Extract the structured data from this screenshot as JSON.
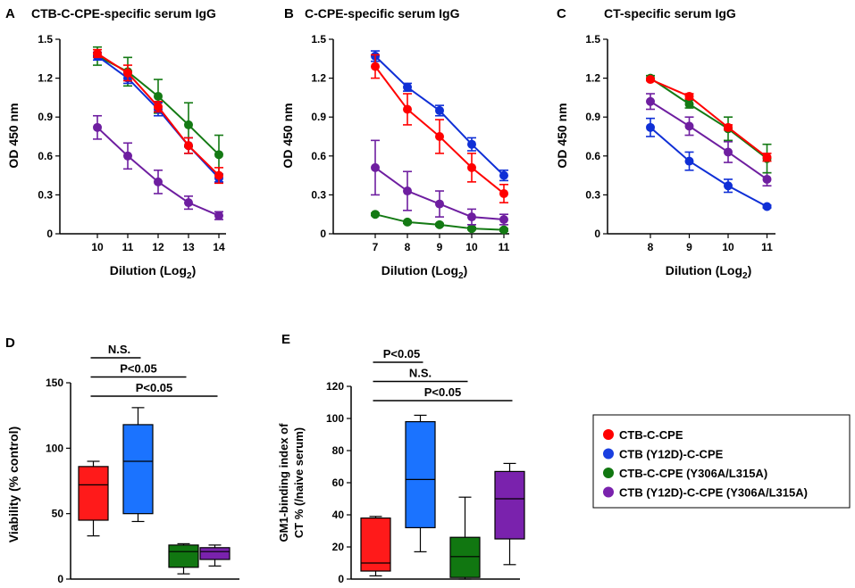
{
  "colors": {
    "red": "#ff0000",
    "blue": "#0f2fd6",
    "green": "#147a14",
    "purple": "#6e1ea0",
    "box_red": "#ff1a1a",
    "box_blue": "#1b73ff",
    "box_green": "#117711",
    "box_purple": "#7a22ad"
  },
  "legend": {
    "items": [
      {
        "label": "CTB-C-CPE",
        "color": "#ff0000"
      },
      {
        "label": "CTB (Y12D)-C-CPE",
        "color": "#1a3fe0"
      },
      {
        "label": "CTB-C-CPE (Y306A/L315A)",
        "color": "#117711"
      },
      {
        "label": "CTB (Y12D)-C-CPE (Y306A/L315A)",
        "color": "#7a22ad"
      }
    ]
  },
  "chart_data": [
    {
      "panel": "A",
      "type": "line",
      "title": "CTB-C-CPE-specific serum IgG",
      "xlabel": "Dilution (Log",
      "xlabel_sub": "2",
      "xlabel_end": ")",
      "ylabel": "OD 450 nm",
      "x": [
        10,
        11,
        12,
        13,
        14
      ],
      "x_ticks": [
        "10",
        "11",
        "12",
        "13",
        "14"
      ],
      "ylim": [
        0,
        1.5
      ],
      "y_ticks": [
        "0",
        "0.3",
        "0.6",
        "0.9",
        "1.2",
        "1.5"
      ],
      "series": [
        {
          "name": "CTB (Y12D)-C-CPE (Y306A/L315A)",
          "color": "#6e1ea0",
          "values": [
            0.82,
            0.6,
            0.4,
            0.24,
            0.14
          ],
          "errors": [
            0.09,
            0.1,
            0.09,
            0.05,
            0.03
          ]
        },
        {
          "name": "CTB-C-CPE (Y306A/L315A)",
          "color": "#147a14",
          "values": [
            1.37,
            1.25,
            1.06,
            0.84,
            0.61
          ],
          "errors": [
            0.07,
            0.11,
            0.13,
            0.17,
            0.15
          ]
        },
        {
          "name": "CTB (Y12D)-C-CPE",
          "color": "#0f2fd6",
          "values": [
            1.37,
            1.2,
            0.96,
            0.68,
            0.43
          ],
          "errors": [
            0.03,
            0.04,
            0.05,
            0.06,
            0.03
          ]
        },
        {
          "name": "CTB-C-CPE",
          "color": "#ff0000",
          "values": [
            1.39,
            1.24,
            0.98,
            0.68,
            0.45
          ],
          "errors": [
            0.03,
            0.06,
            0.04,
            0.06,
            0.06
          ]
        }
      ]
    },
    {
      "panel": "B",
      "type": "line",
      "title": "C-CPE-specific serum IgG",
      "xlabel": "Dilution (Log",
      "xlabel_sub": "2",
      "xlabel_end": ")",
      "ylabel": "OD 450 nm",
      "x": [
        7,
        8,
        9,
        10,
        11
      ],
      "x_ticks": [
        "7",
        "8",
        "9",
        "10",
        "11"
      ],
      "ylim": [
        0,
        1.5
      ],
      "y_ticks": [
        "0",
        "0.3",
        "0.6",
        "0.9",
        "1.2",
        "1.5"
      ],
      "series": [
        {
          "name": "CTB-C-CPE (Y306A/L315A)",
          "color": "#147a14",
          "values": [
            0.15,
            0.09,
            0.07,
            0.04,
            0.03
          ],
          "errors": [
            0.01,
            0.01,
            0.01,
            0.01,
            0.01
          ]
        },
        {
          "name": "CTB (Y12D)-C-CPE (Y306A/L315A)",
          "color": "#6e1ea0",
          "values": [
            0.51,
            0.33,
            0.23,
            0.13,
            0.11
          ],
          "errors": [
            0.21,
            0.15,
            0.1,
            0.06,
            0.04
          ]
        },
        {
          "name": "CTB (Y12D)-C-CPE",
          "color": "#0f2fd6",
          "values": [
            1.37,
            1.13,
            0.95,
            0.69,
            0.45
          ],
          "errors": [
            0.04,
            0.03,
            0.04,
            0.05,
            0.04
          ]
        },
        {
          "name": "CTB-C-CPE",
          "color": "#ff0000",
          "values": [
            1.29,
            0.96,
            0.75,
            0.51,
            0.31
          ],
          "errors": [
            0.09,
            0.12,
            0.13,
            0.11,
            0.07
          ]
        }
      ]
    },
    {
      "panel": "C",
      "type": "line",
      "title": "CT-specific serum IgG",
      "xlabel": "Dilution (Log",
      "xlabel_sub": "2",
      "xlabel_end": ")",
      "ylabel": "OD 450 nm",
      "x": [
        8,
        9,
        10,
        11
      ],
      "x_ticks": [
        "8",
        "9",
        "10",
        "11"
      ],
      "ylim": [
        0,
        1.5
      ],
      "y_ticks": [
        "0",
        "0.3",
        "0.6",
        "0.9",
        "1.2",
        "1.5"
      ],
      "series": [
        {
          "name": "CTB (Y12D)-C-CPE",
          "color": "#0f2fd6",
          "values": [
            0.82,
            0.56,
            0.37,
            0.21
          ],
          "errors": [
            0.07,
            0.07,
            0.05,
            0.01
          ]
        },
        {
          "name": "CTB (Y12D)-C-CPE (Y306A/L315A)",
          "color": "#6e1ea0",
          "values": [
            1.02,
            0.83,
            0.63,
            0.42
          ],
          "errors": [
            0.06,
            0.07,
            0.08,
            0.05
          ]
        },
        {
          "name": "CTB-C-CPE (Y306A/L315A)",
          "color": "#147a14",
          "values": [
            1.2,
            1.0,
            0.81,
            0.58
          ],
          "errors": [
            0.02,
            0.03,
            0.09,
            0.11
          ]
        },
        {
          "name": "CTB-C-CPE",
          "color": "#ff0000",
          "values": [
            1.19,
            1.06,
            0.82,
            0.59
          ],
          "errors": [
            0.01,
            0.02,
            0.02,
            0.03
          ]
        }
      ]
    },
    {
      "panel": "D",
      "type": "box",
      "ylabel": "Viability (% control)",
      "ylim": [
        0,
        150
      ],
      "y_ticks": [
        "0",
        "50",
        "100",
        "150"
      ],
      "boxes": [
        {
          "name": "CTB-C-CPE",
          "color": "#ff1a1a",
          "min": 33,
          "q1": 45,
          "median": 72,
          "q3": 86,
          "max": 90
        },
        {
          "name": "CTB (Y12D)-C-CPE",
          "color": "#1b73ff",
          "min": 44,
          "q1": 50,
          "median": 90,
          "q3": 118,
          "max": 131
        },
        {
          "name": "CTB-C-CPE (Y306A/L315A)",
          "color": "#117711",
          "min": 4,
          "q1": 9,
          "median": 21,
          "q3": 26,
          "max": 27
        },
        {
          "name": "CTB (Y12D)-C-CPE (Y306A/L315A)",
          "color": "#7a22ad",
          "min": 10,
          "q1": 15,
          "median": 21,
          "q3": 24,
          "max": 26
        }
      ],
      "brackets": [
        {
          "label": "N.S.",
          "from": 0,
          "to": 1
        },
        {
          "label": "P<0.05",
          "from": 0,
          "to": 2
        },
        {
          "label": "P<0.05",
          "from": 0,
          "to": 3
        }
      ]
    },
    {
      "panel": "E",
      "type": "box",
      "ylabel": "GM1-binding index of",
      "ylabel2": "CT % (/naive serum)",
      "ylim": [
        0,
        120
      ],
      "y_ticks": [
        "0",
        "20",
        "40",
        "60",
        "80",
        "100",
        "120"
      ],
      "boxes": [
        {
          "name": "CTB-C-CPE",
          "color": "#ff1a1a",
          "min": 2,
          "q1": 5,
          "median": 10,
          "q3": 38,
          "max": 39
        },
        {
          "name": "CTB (Y12D)-C-CPE",
          "color": "#1b73ff",
          "min": 17,
          "q1": 32,
          "median": 62,
          "q3": 98,
          "max": 102
        },
        {
          "name": "CTB-C-CPE (Y306A/L315A)",
          "color": "#117711",
          "min": 0,
          "q1": 1,
          "median": 14,
          "q3": 26,
          "max": 51
        },
        {
          "name": "CTB (Y12D)-C-CPE (Y306A/L315A)",
          "color": "#7a22ad",
          "min": 9,
          "q1": 25,
          "median": 50,
          "q3": 67,
          "max": 72
        }
      ],
      "brackets": [
        {
          "label": "P<0.05",
          "from": 0,
          "to": 1
        },
        {
          "label": "N.S.",
          "from": 0,
          "to": 2
        },
        {
          "label": "P<0.05",
          "from": 0,
          "to": 3
        }
      ]
    }
  ],
  "panel_labels": [
    "A",
    "B",
    "C",
    "D",
    "E"
  ]
}
